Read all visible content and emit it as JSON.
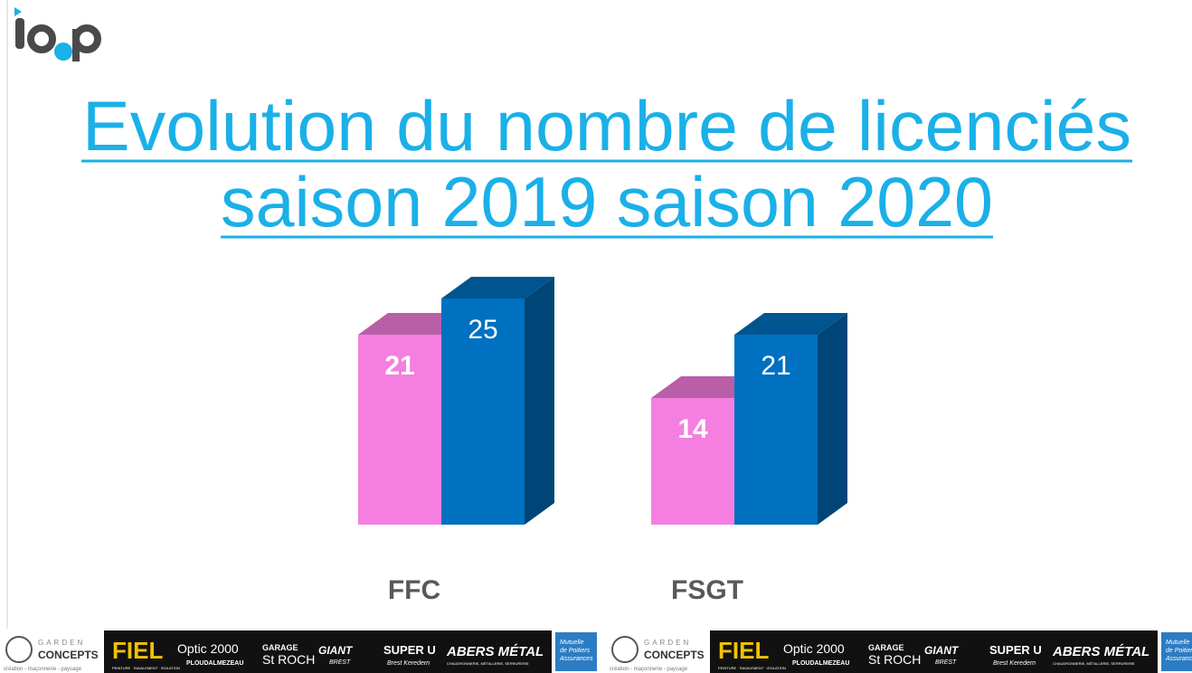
{
  "chart_data": {
    "type": "bar3d",
    "title": [
      "Evolution du nombre de licenciés",
      "saison 2019 saison 2020"
    ],
    "categories": [
      "FFC",
      "FSGT"
    ],
    "series": [
      {
        "color": "#f57fe0",
        "values": [
          21,
          14
        ]
      },
      {
        "color": "#0070c0",
        "values": [
          25,
          21
        ]
      }
    ],
    "ylim": [
      0,
      30
    ]
  },
  "banner": [
    "GARDEN",
    "CONCEPTS",
    "création - maçonnerie - paysage",
    "FIEL",
    "PEINTURE · RAVALEMENT · ISOLATION",
    "Optic 2000",
    "PLOUDALMEZEAU",
    "GARAGE",
    "St ROCH",
    "GIANT",
    "BREST",
    "SUPER U",
    "Brest Keredern",
    "ABERS MÉTAL",
    "CHAUDRONNERIE, MÉTALLERIE, SERRURERIE",
    "Mutuelle",
    "de Poitiers",
    "Assurances"
  ]
}
